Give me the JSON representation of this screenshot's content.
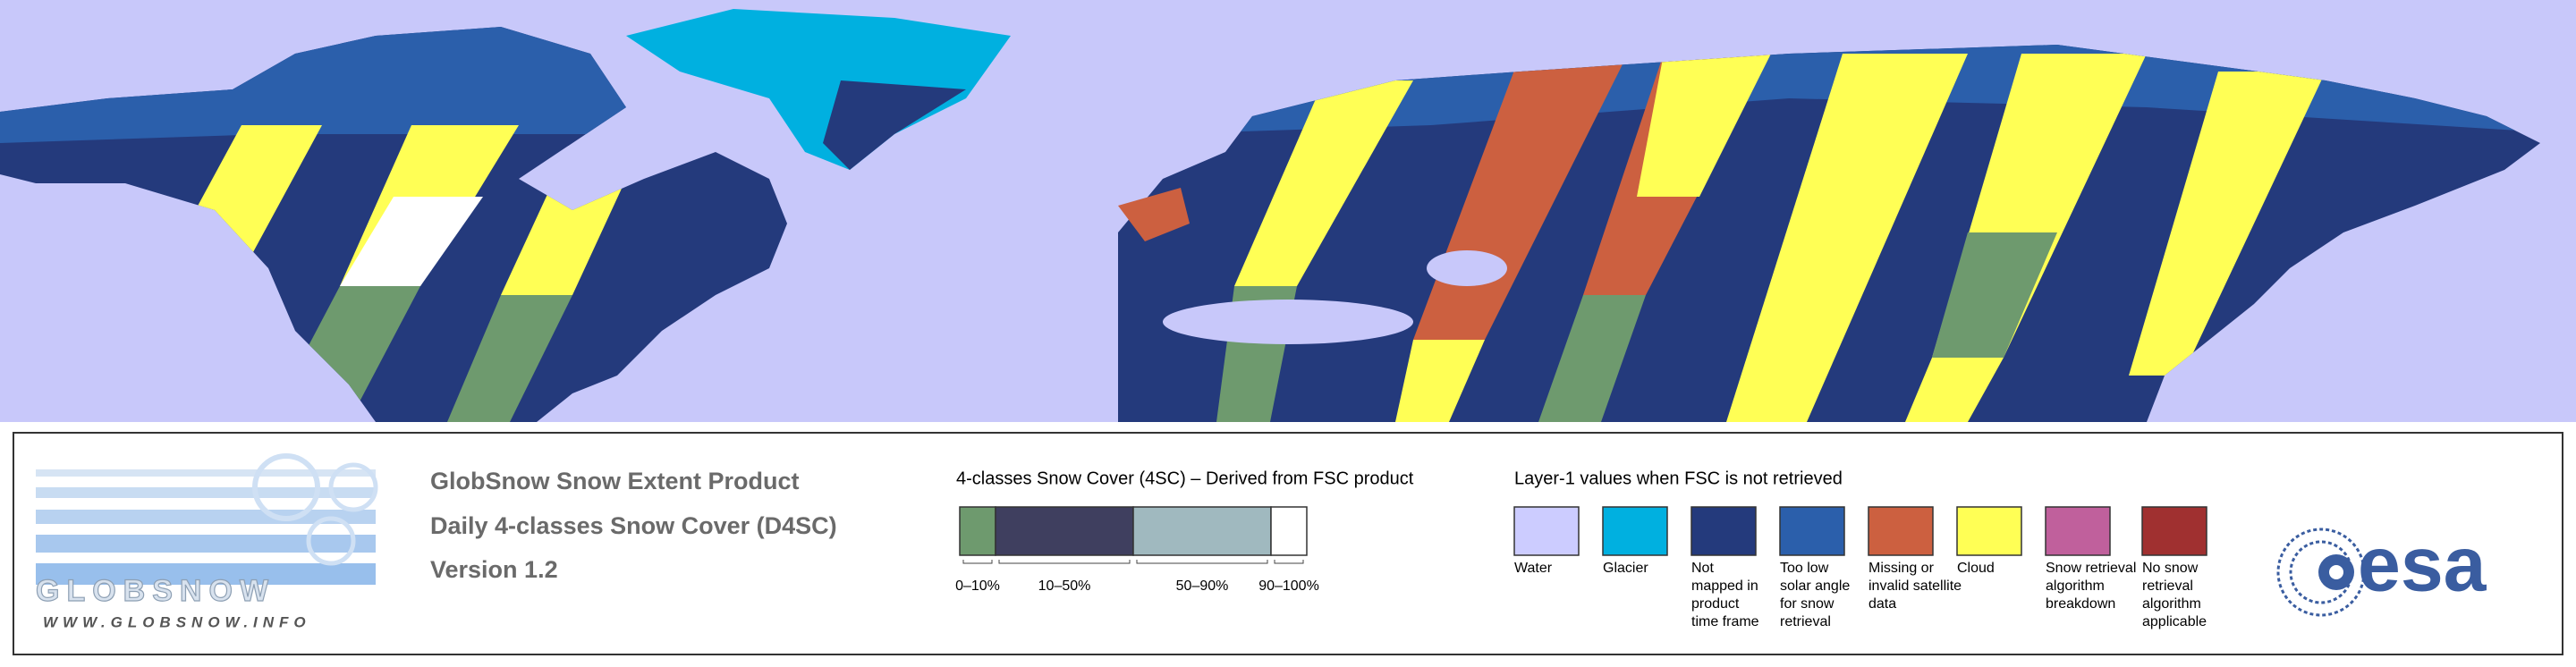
{
  "header": {
    "title": "GlobSnow Snow Extent Product",
    "subtitle": "Daily 4-classes Snow Cover (D4SC)",
    "version": "Version 1.2"
  },
  "logo": {
    "name": "GLOBSNOW",
    "url": "WWW.GLOBSNOW.INFO",
    "agency": "esa"
  },
  "snow_cover_legend": {
    "title": "4-classes Snow Cover (4SC) – Derived from FSC product",
    "classes": [
      {
        "label": "0–10%",
        "color": "#6e9a6e"
      },
      {
        "label": "10–50%",
        "color": "#3f3f5f"
      },
      {
        "label": "50–90%",
        "color": "#a0b9bf"
      },
      {
        "label": "90–100%",
        "color": "#ffffff"
      }
    ]
  },
  "layer1_legend": {
    "title": "Layer-1 values when FSC is not retrieved",
    "items": [
      {
        "label_lines": [
          "Water"
        ],
        "color": "#ccccff"
      },
      {
        "label_lines": [
          "Glacier"
        ],
        "color": "#00b0e0"
      },
      {
        "label_lines": [
          "Not",
          "mapped in",
          "product",
          "time frame"
        ],
        "color": "#243a7c"
      },
      {
        "label_lines": [
          "Too low",
          "solar angle",
          "for snow",
          "retrieval"
        ],
        "color": "#2b5fab"
      },
      {
        "label_lines": [
          "Missing or",
          "invalid satellite",
          "data"
        ],
        "color": "#cc6040"
      },
      {
        "label_lines": [
          "Cloud"
        ],
        "color": "#ffff55"
      },
      {
        "label_lines": [
          "Snow retrieval",
          "algorithm",
          "breakdown"
        ],
        "color": "#c0609c"
      },
      {
        "label_lines": [
          "No snow",
          "retrieval",
          "algorithm",
          "applicable"
        ],
        "color": "#a03030"
      }
    ]
  }
}
